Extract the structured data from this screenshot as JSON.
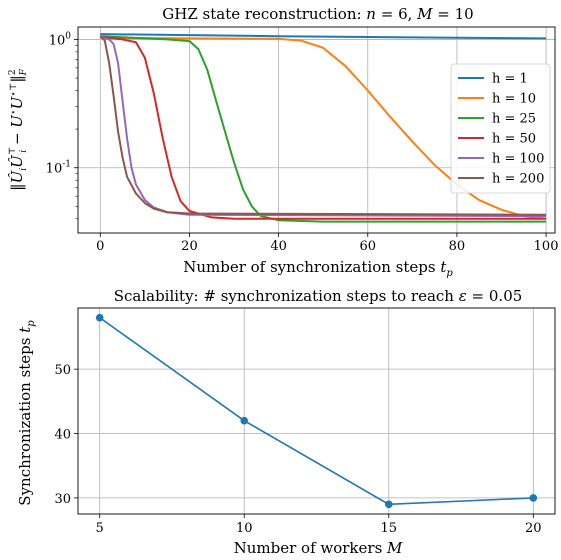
{
  "chart_data": [
    {
      "type": "line",
      "title": "GHZ state reconstruction: n = 6, M = 10",
      "xlabel": "Number of synchronization steps t_p",
      "ylabel": "||Û_i Û_i^⊤ − U* U*^⊤||²_F",
      "xlim": [
        -5,
        102
      ],
      "ylim": [
        0.031,
        1.25
      ],
      "yscale": "log",
      "grid": true,
      "legend_position": "right",
      "x_ticks": [
        "0",
        "20",
        "40",
        "60",
        "80",
        "100"
      ],
      "x_tick_values": [
        0,
        20,
        40,
        60,
        80,
        100
      ],
      "y_ticks": [
        "10^0",
        "10^-1"
      ],
      "y_tick_values": [
        1,
        0.1
      ],
      "series": [
        {
          "name": "h = 1",
          "color": "#1f77b4",
          "x": [
            0,
            20,
            40,
            60,
            80,
            100
          ],
          "y": [
            1.1,
            1.08,
            1.06,
            1.045,
            1.03,
            1.02
          ]
        },
        {
          "name": "h = 10",
          "color": "#ff7f0e",
          "x": [
            0,
            20,
            40,
            45,
            50,
            55,
            60,
            65,
            70,
            75,
            80,
            85,
            90,
            95,
            100
          ],
          "y": [
            1.03,
            1.02,
            1.01,
            0.98,
            0.86,
            0.62,
            0.4,
            0.25,
            0.16,
            0.105,
            0.074,
            0.056,
            0.047,
            0.042,
            0.04
          ]
        },
        {
          "name": "h = 25",
          "color": "#2ca02c",
          "x": [
            0,
            15,
            20,
            22,
            24,
            26,
            28,
            30,
            32,
            34,
            36,
            40,
            50,
            100
          ],
          "y": [
            1.06,
            1.0,
            0.97,
            0.84,
            0.58,
            0.33,
            0.19,
            0.11,
            0.068,
            0.05,
            0.042,
            0.039,
            0.038,
            0.038
          ]
        },
        {
          "name": "h = 50",
          "color": "#d62728",
          "x": [
            0,
            5,
            8,
            10,
            12,
            14,
            16,
            18,
            20,
            25,
            30,
            100
          ],
          "y": [
            1.05,
            1.0,
            0.95,
            0.72,
            0.38,
            0.17,
            0.085,
            0.055,
            0.046,
            0.041,
            0.04,
            0.04
          ]
        },
        {
          "name": "h = 100",
          "color": "#9467bd",
          "x": [
            0,
            2,
            3,
            4,
            5,
            6,
            7,
            8,
            10,
            12,
            15,
            20,
            100
          ],
          "y": [
            1.05,
            1.0,
            0.92,
            0.65,
            0.33,
            0.17,
            0.1,
            0.074,
            0.056,
            0.049,
            0.045,
            0.043,
            0.042
          ]
        },
        {
          "name": "h = 200",
          "color": "#8c564b",
          "x": [
            0,
            1,
            2,
            3,
            4,
            5,
            6,
            8,
            10,
            12,
            15,
            20,
            100
          ],
          "y": [
            1.06,
            0.98,
            0.65,
            0.36,
            0.19,
            0.12,
            0.085,
            0.063,
            0.053,
            0.048,
            0.045,
            0.044,
            0.043
          ]
        }
      ]
    },
    {
      "type": "line",
      "title": "Scalability: # synchronization steps to reach ε = 0.05",
      "xlabel": "Number of workers M",
      "ylabel": "Synchronization steps t_p",
      "xlim": [
        4.25,
        20.75
      ],
      "ylim": [
        27.5,
        59.5
      ],
      "grid": true,
      "x_ticks": [
        "5",
        "10",
        "15",
        "20"
      ],
      "x_tick_values": [
        5,
        10,
        15,
        20
      ],
      "y_ticks": [
        "30",
        "40",
        "50"
      ],
      "y_tick_values": [
        30,
        40,
        50
      ],
      "series": [
        {
          "color": "#1f77b4",
          "x": [
            5,
            10,
            15,
            20
          ],
          "y": [
            58,
            42,
            29,
            30
          ]
        }
      ]
    }
  ]
}
